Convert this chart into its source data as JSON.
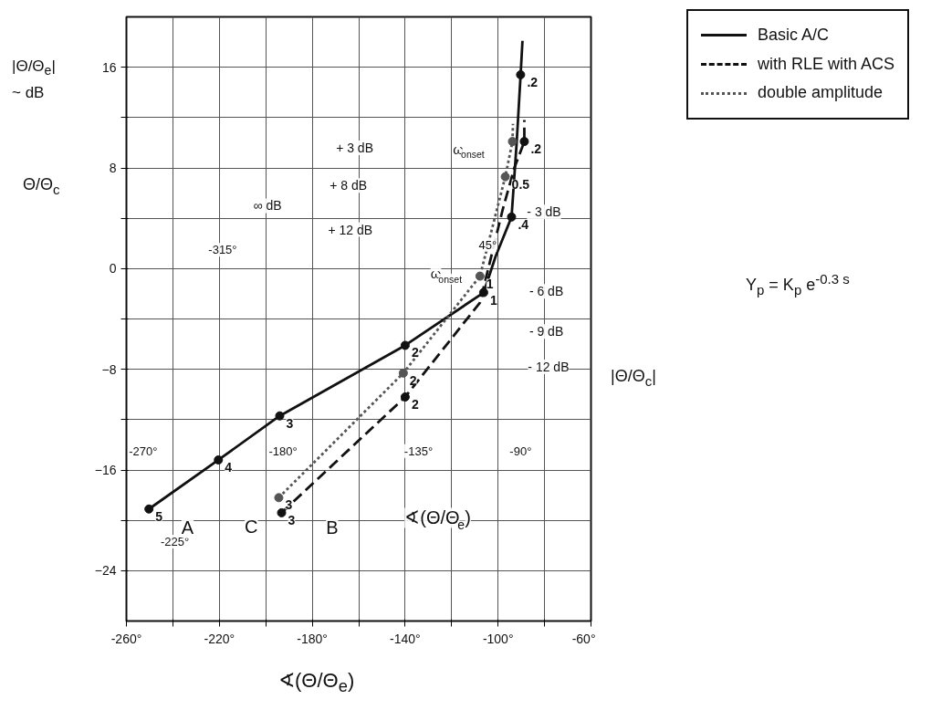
{
  "chart_data": {
    "type": "line",
    "xlabel": "∢(Θ/Θ$_{e}$)",
    "ylabel": "|Θ/Θ$_{e}$| ~ dB",
    "xlim": [
      -260,
      -60
    ],
    "ylim": [
      -28,
      20
    ],
    "xticks": [
      {
        "value": -260,
        "label": "-260°"
      },
      {
        "value": -240,
        "label": null
      },
      {
        "value": -220,
        "label": "-220°"
      },
      {
        "value": -200,
        "label": null
      },
      {
        "value": -180,
        "label": "-180°"
      },
      {
        "value": -160,
        "label": null
      },
      {
        "value": -140,
        "label": "-140°"
      },
      {
        "value": -120,
        "label": null
      },
      {
        "value": -100,
        "label": "-100°"
      },
      {
        "value": -80,
        "label": null
      },
      {
        "value": -60,
        "label": "-60°"
      }
    ],
    "yticks": [
      -24,
      {
        "value": -20,
        "label": null
      },
      -16,
      {
        "value": -12,
        "label": null
      },
      -8,
      {
        "value": -4,
        "label": null
      },
      0,
      {
        "value": 4,
        "label": null
      },
      8,
      {
        "value": 12,
        "label": null
      },
      16
    ],
    "grid": true,
    "legend": "right",
    "marker": "circle",
    "series": [
      {
        "name": "Basic A/C",
        "color": "#111111",
        "line_style": "solid",
        "marker": "none",
        "x": [
          -250.3,
          -220.4,
          -194.0,
          -140.0,
          -106.2,
          -101.0,
          -94.2,
          -92.0,
          -90.3,
          -89.5
        ],
        "values": [
          -19.1,
          -15.2,
          -11.7,
          -6.1,
          -1.9,
          1.0,
          4.1,
          10.0,
          15.4,
          18.1
        ]
      },
      {
        "name": "with RLE with ACS",
        "color": "#111111",
        "line_style": "dashed",
        "marker": "none",
        "x": [
          -193.2,
          -140.0,
          -107.8,
          -98.0,
          -93.0,
          -88.7,
          -88.7
        ],
        "values": [
          -19.4,
          -10.2,
          -2.7,
          4.7,
          8.0,
          10.1,
          11.8
        ]
      },
      {
        "name": "double amplitude",
        "color": "#555555",
        "line_style": "dotted",
        "marker": "none",
        "x": [
          -194.4,
          -140.8,
          -107.8,
          -96.9,
          -93.8,
          -93.6
        ],
        "values": [
          -18.2,
          -8.3,
          -0.6,
          7.3,
          10.1,
          11.5
        ]
      },
      {
        "type": "scatter",
        "color": "#111111",
        "x": [
          -250.3,
          -220.4,
          -194.0,
          -140.0,
          -106.2,
          -94.2,
          -90.3
        ],
        "values": [
          -19.1,
          -15.2,
          -11.7,
          -6.1,
          -1.9,
          4.1,
          15.4
        ]
      },
      {
        "type": "scatter",
        "color": "#111111",
        "x": [
          -193.2,
          -140.0,
          -88.7
        ],
        "values": [
          -19.4,
          -10.2,
          10.1
        ]
      },
      {
        "type": "scatter",
        "color": "#555555",
        "x": [
          -194.4,
          -140.8,
          -107.8,
          -96.9,
          -93.8
        ],
        "values": [
          -18.2,
          -8.3,
          -0.6,
          7.3,
          10.1
        ]
      }
    ],
    "annotations": [
      "Θ/Θ$_{c}$",
      "|Θ/Θ$_{c}$|",
      "Y$_{p}$ = K$_{p}$ e$^{-0.3 s}$",
      "+ 3 dB",
      "+ 8 dB",
      "+ 12 dB",
      "∞ dB",
      "- 3 dB",
      "- 6 dB",
      "- 9 dB",
      "- 12 dB",
      "-315°",
      "-270°",
      "-225°",
      "-180°",
      "-135°",
      "-90°",
      "45°",
      "ω$_{onset}$",
      "ω$_{onset}$",
      "A",
      "C",
      "B",
      "∢(Θ/Θ$_{e}$)",
      {
        "text": "5",
        "x": -250.3,
        "y": -19.1
      },
      {
        "text": "4",
        "x": -220.4,
        "y": -15.2
      },
      {
        "text": "3",
        "x": -194.0,
        "y": -11.7
      },
      {
        "text": "2",
        "x": -140.0,
        "y": -6.1
      },
      {
        "text": "1",
        "x": -106.2,
        "y": -1.9
      },
      {
        "text": ".4",
        "x": -94.2,
        "y": 4.1
      },
      {
        "text": ".2",
        "x": -90.3,
        "y": 15.4
      },
      {
        "text": "3",
        "x": -193.2,
        "y": -19.4
      },
      {
        "text": "2",
        "x": -140.0,
        "y": -10.2
      },
      {
        "text": ".2",
        "x": -88.7,
        "y": 10.1
      },
      {
        "text": "3",
        "x": -194.4,
        "y": -18.2
      },
      {
        "text": "2",
        "x": -140.8,
        "y": -8.3
      },
      {
        "text": "1",
        "x": -107.8,
        "y": -0.6
      },
      {
        "text": "0.5",
        "x": -96.9,
        "y": 7.3
      }
    ]
  }
}
